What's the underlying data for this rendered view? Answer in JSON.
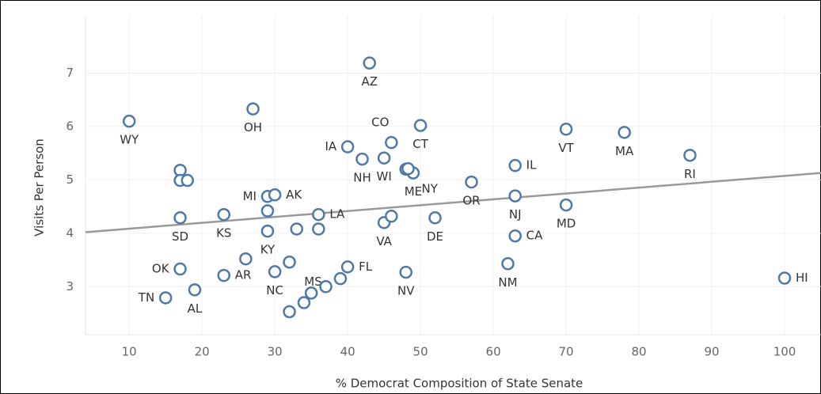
{
  "chart_data": {
    "type": "scatter",
    "x_label": "% Democrat Composition of State Senate",
    "y_label": "Visits Per Person",
    "xlim": [
      4,
      105
    ],
    "ylim": [
      2.1,
      7.6
    ],
    "xticks": [
      10,
      20,
      30,
      40,
      50,
      60,
      70,
      80,
      90,
      100
    ],
    "yticks": [
      3,
      4,
      5,
      6,
      7
    ],
    "grid": true,
    "color": "#4e79a7",
    "trend_color": "#999999",
    "series": [
      {
        "x": [
          10,
          27,
          43,
          46,
          50,
          40,
          42,
          45,
          49,
          48,
          48.3,
          57,
          63,
          63,
          63,
          62,
          70,
          70,
          78,
          87,
          100,
          45,
          46,
          52,
          48,
          36,
          36,
          33,
          29,
          23,
          17,
          29,
          30,
          29,
          17,
          17,
          18,
          17,
          15,
          19,
          23,
          26,
          30,
          32,
          32,
          34,
          35,
          37,
          39,
          40
        ],
        "values": [
          6.1,
          6.33,
          7.19,
          5.7,
          6.02,
          5.62,
          5.39,
          5.41,
          5.13,
          5.2,
          5.21,
          4.96,
          5.27,
          4.7,
          3.95,
          3.43,
          5.95,
          4.53,
          5.89,
          5.46,
          3.16,
          4.2,
          4.32,
          4.29,
          3.27,
          4.35,
          4.08,
          4.08,
          4.04,
          4.35,
          4.29,
          4.69,
          4.72,
          4.42,
          5.18,
          4.99,
          4.99,
          3.33,
          2.79,
          2.94,
          3.21,
          3.52,
          3.28,
          3.46,
          2.53,
          2.7,
          2.88,
          3.0,
          3.15,
          3.37
        ],
        "labels": [
          "WY",
          "OH",
          "AZ",
          "CO",
          "CT",
          "IA",
          "NH",
          "WI",
          "ME",
          "NY",
          null,
          "OR",
          "IL",
          "NJ",
          "CA",
          "NM",
          "VT",
          "MD",
          "MA",
          "RI",
          "HI",
          "VA",
          null,
          "DE",
          "NV",
          "LA",
          null,
          null,
          "KY",
          "KS",
          "SD",
          "MI",
          "AK",
          null,
          null,
          null,
          null,
          "OK",
          "TN",
          "AL",
          "AR",
          null,
          "NC",
          "MS",
          null,
          null,
          null,
          null,
          null,
          "FL"
        ]
      }
    ],
    "trend_line": {
      "x": [
        4,
        105
      ],
      "y": [
        4.02,
        5.13
      ]
    }
  }
}
